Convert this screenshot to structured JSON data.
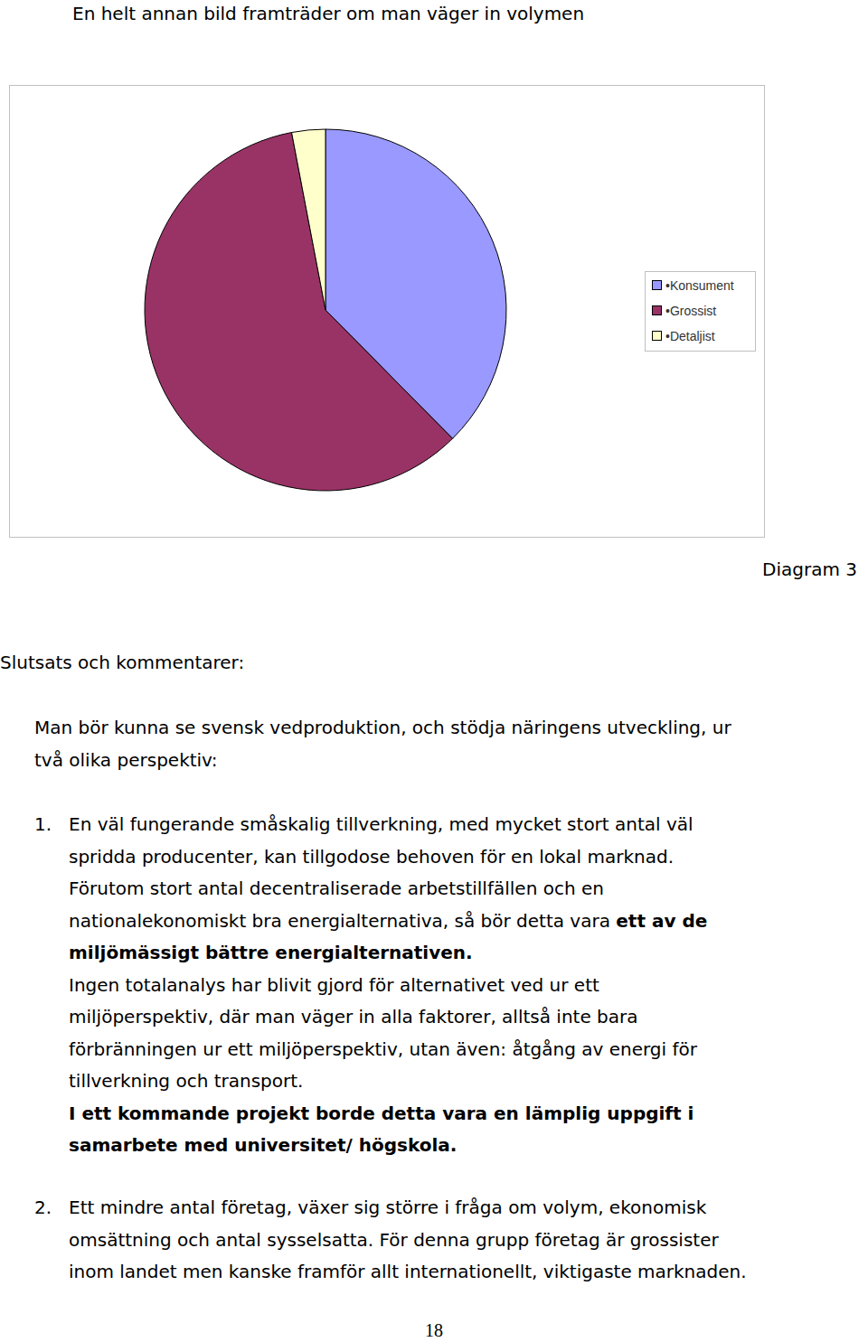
{
  "chart_data": {
    "type": "pie",
    "categories": [
      "•Konsument",
      "•Grossist",
      "•Detaljist"
    ],
    "values": [
      37.6,
      59.4,
      3.0
    ],
    "colors": [
      "#9999ff",
      "#993366",
      "#ffffcc"
    ],
    "legend": "right"
  },
  "document": {
    "heading": "En helt annan bild framträder om man väger in volymen",
    "caption": "Diagram 3",
    "section_title": "Slutsats och kommentarer:",
    "intro": [
      "Man bör kunna se svensk vedproduktion, och stödja näringens utveckling, ur",
      "två olika perspektiv:"
    ],
    "items": [
      {
        "number": "1.",
        "lines": [
          [
            "En väl fungerande småskalig tillverkning, med mycket stort antal väl"
          ],
          [
            "spridda producenter, kan tillgodose behoven för en lokal marknad."
          ],
          [
            "Förutom stort antal decentraliserade arbetstillfällen och en"
          ],
          [
            "nationalekonomiskt bra energialternativa, så bör detta vara ",
            {
              "text": "ett av de",
              "bold": true
            }
          ],
          [
            {
              "text": "miljömässigt bättre energialternativen.",
              "bold": true
            }
          ],
          [
            "Ingen totalanalys har blivit gjord för alternativet ved ur ett"
          ],
          [
            "miljöperspektiv, där man väger in alla faktorer, alltså inte bara"
          ],
          [
            "förbränningen ur ett miljöperspektiv, utan även: åtgång av energi för"
          ],
          [
            "tillverkning och transport."
          ],
          [
            {
              "text": "I ett kommande projekt borde detta vara en lämplig uppgift i",
              "bold": true
            }
          ],
          [
            {
              "text": "samarbete med universitet/ högskola.",
              "bold": true
            }
          ]
        ]
      },
      {
        "number": "2.",
        "lines": [
          [
            "Ett mindre antal företag, växer sig större i fråga om volym, ekonomisk"
          ],
          [
            "omsättning och antal sysselsatta. För denna grupp företag är grossister"
          ],
          [
            "inom landet men kanske framför allt internationellt, viktigaste marknaden."
          ]
        ]
      }
    ],
    "page_number": "18"
  }
}
